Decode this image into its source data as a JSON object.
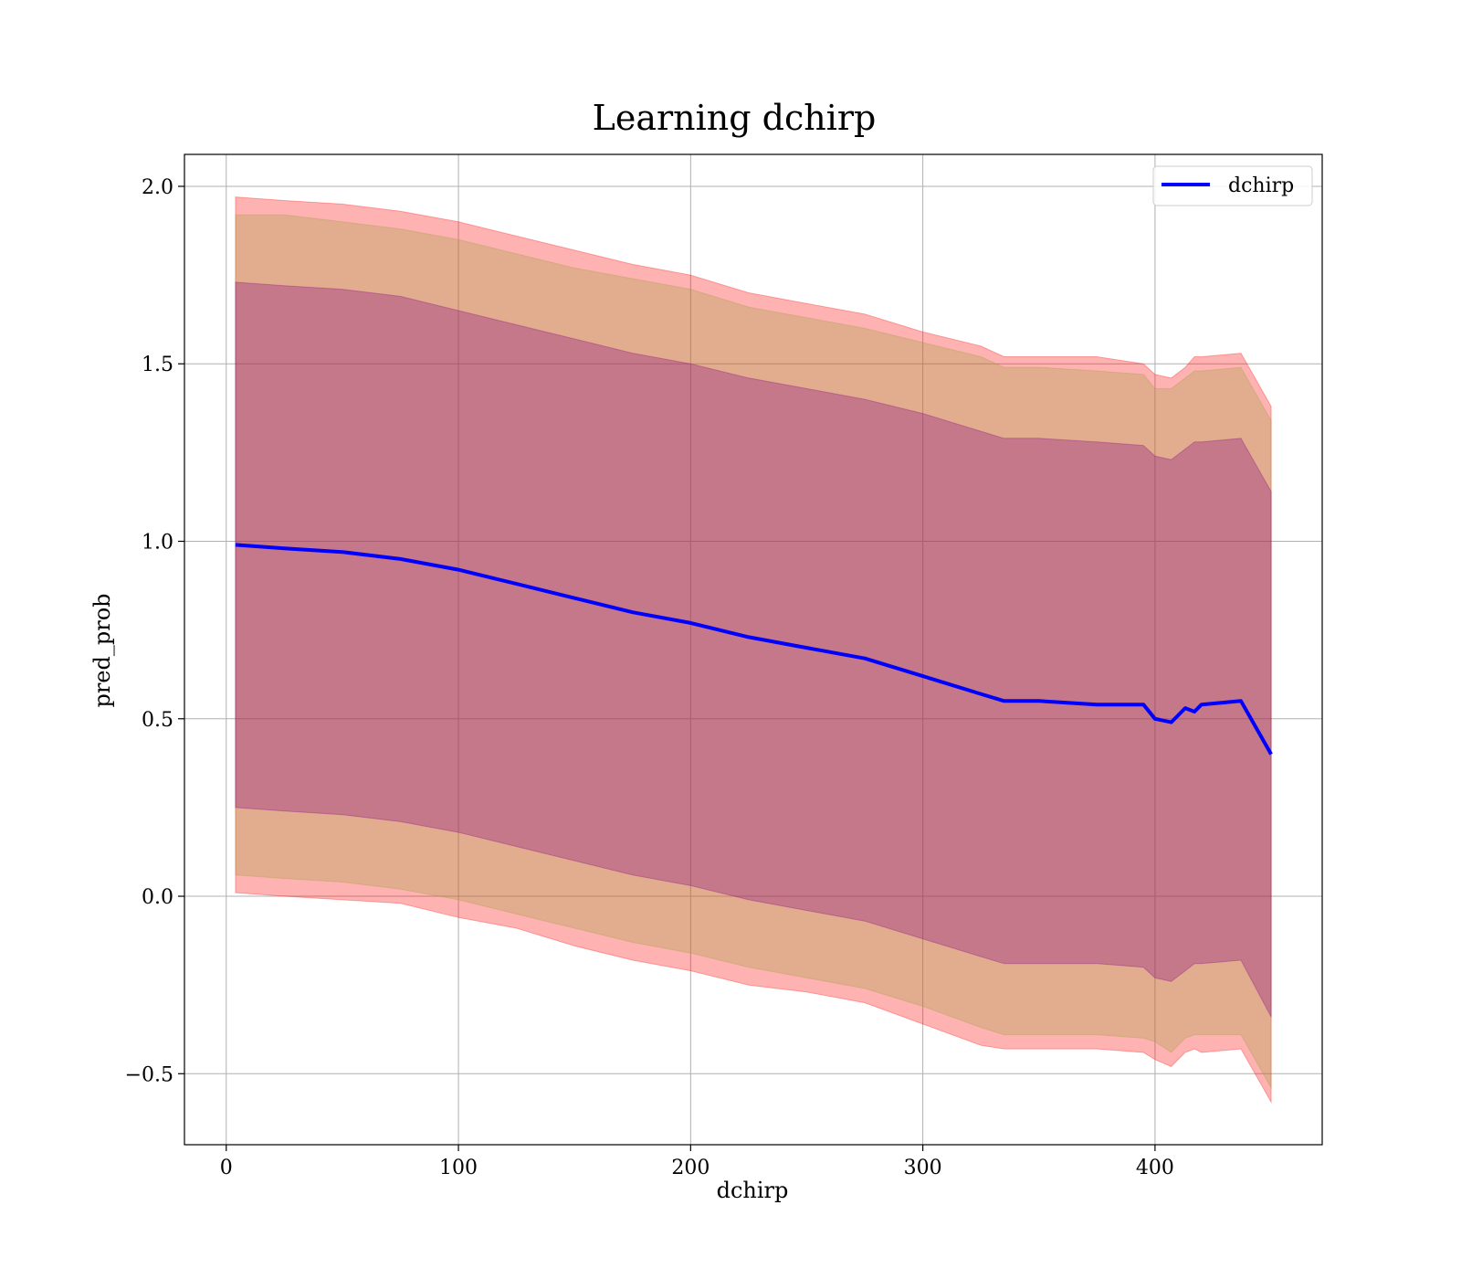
{
  "chart_data": {
    "type": "line",
    "title": "Learning dchirp",
    "xlabel": "dchirp",
    "ylabel": "pred_prob",
    "xlim": [
      -18,
      472
    ],
    "ylim": [
      -0.7,
      2.09
    ],
    "xticks": [
      0,
      100,
      200,
      300,
      400
    ],
    "xtick_labels": [
      "0",
      "100",
      "200",
      "300",
      "400"
    ],
    "yticks": [
      -0.5,
      0.0,
      0.5,
      1.0,
      1.5,
      2.0
    ],
    "ytick_labels": [
      "−0.5",
      "0.0",
      "0.5",
      "1.0",
      "1.5",
      "2.0"
    ],
    "grid": true,
    "legend": {
      "position": "top-right",
      "entries": [
        "dchirp"
      ]
    },
    "colors": {
      "line": "#0000ff",
      "outer_band": "#ff0000",
      "middle_band": "#a0a040",
      "inner_band": "#800080"
    },
    "x": [
      4,
      25,
      50,
      75,
      100,
      125,
      150,
      175,
      200,
      225,
      250,
      275,
      300,
      325,
      335,
      350,
      375,
      395,
      400,
      407,
      413,
      417,
      420,
      437,
      450
    ],
    "series": [
      {
        "name": "dchirp",
        "values": [
          0.99,
          0.98,
          0.97,
          0.95,
          0.92,
          0.88,
          0.84,
          0.8,
          0.77,
          0.73,
          0.7,
          0.67,
          0.62,
          0.57,
          0.55,
          0.55,
          0.54,
          0.54,
          0.5,
          0.49,
          0.53,
          0.52,
          0.54,
          0.55,
          0.4
        ]
      }
    ],
    "bands": [
      {
        "level": "outer",
        "upper": [
          1.97,
          1.96,
          1.95,
          1.93,
          1.9,
          1.86,
          1.82,
          1.78,
          1.75,
          1.7,
          1.67,
          1.64,
          1.59,
          1.55,
          1.52,
          1.52,
          1.52,
          1.5,
          1.47,
          1.46,
          1.49,
          1.52,
          1.52,
          1.53,
          1.38
        ],
        "lower": [
          0.01,
          0.0,
          -0.01,
          -0.02,
          -0.06,
          -0.09,
          -0.14,
          -0.18,
          -0.21,
          -0.25,
          -0.27,
          -0.3,
          -0.36,
          -0.42,
          -0.43,
          -0.43,
          -0.43,
          -0.44,
          -0.46,
          -0.48,
          -0.44,
          -0.43,
          -0.44,
          -0.43,
          -0.58
        ]
      },
      {
        "level": "middle",
        "upper": [
          1.92,
          1.92,
          1.9,
          1.88,
          1.85,
          1.81,
          1.77,
          1.74,
          1.71,
          1.66,
          1.63,
          1.6,
          1.56,
          1.52,
          1.49,
          1.49,
          1.48,
          1.47,
          1.43,
          1.43,
          1.46,
          1.48,
          1.48,
          1.49,
          1.34
        ],
        "lower": [
          0.06,
          0.05,
          0.04,
          0.02,
          -0.01,
          -0.05,
          -0.09,
          -0.13,
          -0.16,
          -0.2,
          -0.23,
          -0.26,
          -0.31,
          -0.37,
          -0.39,
          -0.39,
          -0.39,
          -0.4,
          -0.41,
          -0.44,
          -0.4,
          -0.39,
          -0.39,
          -0.39,
          -0.54
        ]
      },
      {
        "level": "inner",
        "upper": [
          1.73,
          1.72,
          1.71,
          1.69,
          1.65,
          1.61,
          1.57,
          1.53,
          1.5,
          1.46,
          1.43,
          1.4,
          1.36,
          1.31,
          1.29,
          1.29,
          1.28,
          1.27,
          1.24,
          1.23,
          1.26,
          1.28,
          1.28,
          1.29,
          1.14
        ],
        "lower": [
          0.25,
          0.24,
          0.23,
          0.21,
          0.18,
          0.14,
          0.1,
          0.06,
          0.03,
          -0.01,
          -0.04,
          -0.07,
          -0.12,
          -0.17,
          -0.19,
          -0.19,
          -0.19,
          -0.2,
          -0.23,
          -0.24,
          -0.21,
          -0.19,
          -0.19,
          -0.18,
          -0.34
        ]
      }
    ]
  }
}
